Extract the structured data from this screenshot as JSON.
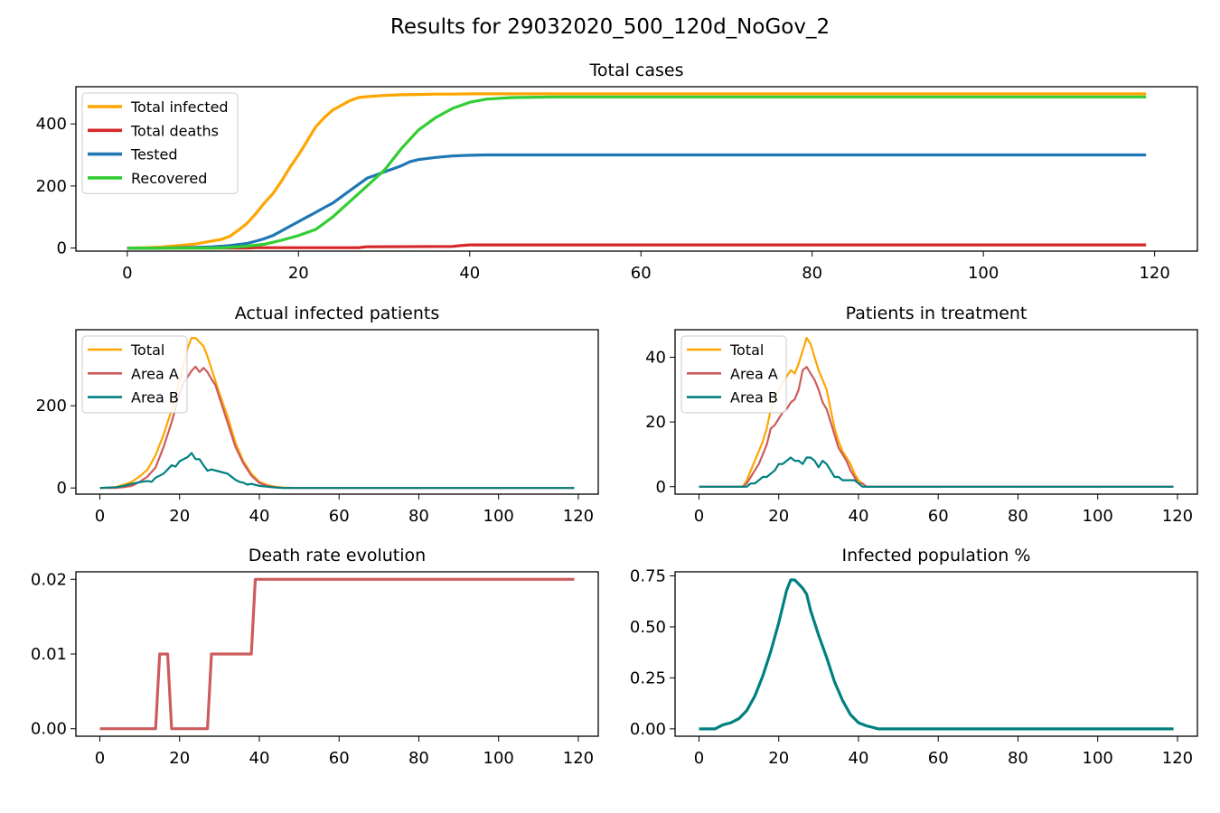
{
  "figure": {
    "title": "Results for 29032020_500_120d_NoGov_2"
  },
  "colors": {
    "orange": "#ffa500",
    "red": "#d62728",
    "blue": "#1f77b4",
    "green": "#32cd32",
    "indianred": "#cd5c5c",
    "teal": "#008080"
  },
  "chart_data": [
    {
      "id": "total-cases",
      "type": "line",
      "title": "Total cases",
      "xlabel": "",
      "ylabel": "",
      "xlim": [
        -6,
        125
      ],
      "ylim": [
        -10,
        520
      ],
      "xticks": [
        0,
        20,
        40,
        60,
        80,
        100,
        120
      ],
      "yticks": [
        0,
        200,
        400
      ],
      "ytick_labels": [
        "0",
        "200",
        "400"
      ],
      "legend": {
        "placement": "upper-left"
      },
      "series": [
        {
          "name": "Total infected",
          "color": "#ffa500",
          "x": [
            0,
            2,
            4,
            6,
            8,
            10,
            11,
            12,
            13,
            14,
            15,
            16,
            17,
            18,
            19,
            20,
            21,
            22,
            23,
            24,
            25,
            26,
            27,
            28,
            30,
            32,
            34,
            36,
            38,
            40,
            45,
            50,
            60,
            119
          ],
          "y": [
            0,
            1,
            3,
            8,
            13,
            23,
            28,
            38,
            58,
            80,
            110,
            145,
            175,
            215,
            260,
            300,
            345,
            390,
            420,
            445,
            460,
            475,
            485,
            488,
            492,
            494,
            495,
            496,
            496,
            497,
            497,
            497,
            497,
            497
          ]
        },
        {
          "name": "Total deaths",
          "color": "#d62728",
          "x": [
            0,
            14,
            15,
            17,
            18,
            27,
            28,
            38,
            39,
            40,
            119
          ],
          "y": [
            0,
            0,
            1,
            1,
            1,
            1,
            4,
            5,
            8,
            10,
            10
          ]
        },
        {
          "name": "Tested",
          "color": "#1f77b4",
          "x": [
            0,
            4,
            8,
            10,
            12,
            14,
            15,
            16,
            17,
            18,
            19,
            20,
            21,
            22,
            23,
            24,
            25,
            26,
            27,
            28,
            29,
            30,
            31,
            32,
            33,
            34,
            36,
            38,
            40,
            42,
            45,
            119
          ],
          "y": [
            0,
            0,
            2,
            4,
            8,
            15,
            22,
            30,
            40,
            55,
            70,
            85,
            100,
            115,
            130,
            145,
            165,
            185,
            205,
            225,
            235,
            245,
            255,
            265,
            278,
            285,
            292,
            297,
            299,
            300,
            300,
            300
          ]
        },
        {
          "name": "Recovered",
          "color": "#32cd32",
          "x": [
            0,
            10,
            12,
            14,
            16,
            18,
            20,
            22,
            24,
            26,
            28,
            30,
            32,
            34,
            36,
            38,
            40,
            42,
            45,
            50,
            119
          ],
          "y": [
            0,
            0,
            2,
            6,
            12,
            25,
            40,
            60,
            100,
            150,
            200,
            250,
            320,
            380,
            420,
            450,
            470,
            480,
            485,
            487,
            487
          ]
        }
      ]
    },
    {
      "id": "actual-infected",
      "type": "line",
      "title": "Actual infected patients",
      "xlabel": "",
      "ylabel": "",
      "xlim": [
        -6,
        125
      ],
      "ylim": [
        -15,
        385
      ],
      "xticks": [
        0,
        20,
        40,
        60,
        80,
        100,
        120
      ],
      "yticks": [
        0,
        200
      ],
      "ytick_labels": [
        "0",
        "200"
      ],
      "legend": {
        "placement": "upper-left"
      },
      "series": [
        {
          "name": "Total",
          "color": "#ffa500",
          "x": [
            0,
            4,
            6,
            8,
            10,
            12,
            14,
            16,
            18,
            20,
            21,
            22,
            23,
            24,
            25,
            26,
            27,
            28,
            30,
            32,
            34,
            36,
            38,
            40,
            42,
            44,
            46,
            50,
            119
          ],
          "y": [
            0,
            2,
            8,
            15,
            28,
            45,
            80,
            130,
            190,
            260,
            300,
            340,
            365,
            365,
            355,
            345,
            320,
            290,
            230,
            175,
            110,
            65,
            35,
            15,
            7,
            3,
            1,
            0,
            0
          ]
        },
        {
          "name": "Area A",
          "color": "#cd5c5c",
          "x": [
            0,
            4,
            6,
            8,
            10,
            12,
            14,
            16,
            18,
            20,
            21,
            22,
            23,
            24,
            25,
            26,
            27,
            28,
            29,
            30,
            32,
            34,
            36,
            38,
            40,
            42,
            44,
            46,
            50,
            119
          ],
          "y": [
            0,
            0,
            2,
            5,
            15,
            28,
            50,
            100,
            160,
            230,
            255,
            270,
            285,
            295,
            282,
            292,
            282,
            265,
            250,
            220,
            160,
            100,
            60,
            30,
            12,
            5,
            2,
            0,
            0,
            0
          ]
        },
        {
          "name": "Area B",
          "color": "#008080",
          "x": [
            0,
            4,
            6,
            8,
            10,
            12,
            13,
            14,
            16,
            18,
            19,
            20,
            21,
            22,
            23,
            24,
            25,
            26,
            27,
            28,
            30,
            32,
            34,
            35,
            36,
            37,
            38,
            40,
            42,
            44,
            46,
            50,
            119
          ],
          "y": [
            0,
            2,
            5,
            10,
            14,
            17,
            15,
            25,
            35,
            55,
            52,
            65,
            70,
            75,
            85,
            70,
            70,
            55,
            42,
            45,
            40,
            35,
            20,
            15,
            13,
            8,
            10,
            5,
            3,
            1,
            0,
            0,
            0
          ]
        }
      ]
    },
    {
      "id": "in-treatment",
      "type": "line",
      "title": "Patients in treatment",
      "xlabel": "",
      "ylabel": "",
      "xlim": [
        -6,
        125
      ],
      "ylim": [
        -2.3,
        48.5
      ],
      "xticks": [
        0,
        20,
        40,
        60,
        80,
        100,
        120
      ],
      "yticks": [
        0,
        20,
        40
      ],
      "ytick_labels": [
        "0",
        "20",
        "40"
      ],
      "legend": {
        "placement": "upper-left"
      },
      "series": [
        {
          "name": "Total",
          "color": "#ffa500",
          "x": [
            0,
            11,
            12,
            13,
            14,
            15,
            16,
            17,
            18,
            19,
            20,
            21,
            22,
            23,
            24,
            25,
            26,
            27,
            28,
            29,
            30,
            31,
            32,
            33,
            34,
            35,
            36,
            37,
            38,
            39,
            40,
            41,
            42,
            45,
            119
          ],
          "y": [
            0,
            0,
            2,
            5,
            8,
            11,
            14,
            18,
            24,
            27,
            30,
            32,
            34,
            36,
            35,
            38,
            42,
            46,
            44,
            40,
            36,
            33,
            30,
            24,
            18,
            14,
            11,
            9,
            7,
            4,
            2,
            1,
            0,
            0,
            0
          ]
        },
        {
          "name": "Area A",
          "color": "#cd5c5c",
          "x": [
            0,
            11,
            12,
            13,
            14,
            15,
            16,
            17,
            18,
            19,
            20,
            21,
            22,
            23,
            24,
            25,
            26,
            27,
            28,
            29,
            30,
            31,
            32,
            33,
            34,
            35,
            36,
            37,
            38,
            39,
            40,
            41,
            42,
            45,
            119
          ],
          "y": [
            0,
            0,
            1,
            3,
            5,
            7,
            10,
            13,
            18,
            19,
            21,
            23,
            24,
            26,
            27,
            30,
            36,
            37,
            35,
            33,
            30,
            26,
            24,
            20,
            16,
            12,
            10,
            8,
            5,
            3,
            1,
            1,
            0,
            0,
            0
          ]
        },
        {
          "name": "Area B",
          "color": "#008080",
          "x": [
            0,
            12,
            13,
            14,
            15,
            16,
            17,
            18,
            19,
            20,
            21,
            22,
            23,
            24,
            25,
            26,
            27,
            28,
            29,
            30,
            31,
            32,
            33,
            34,
            35,
            36,
            37,
            38,
            39,
            40,
            41,
            42,
            45,
            119
          ],
          "y": [
            0,
            0,
            1,
            1,
            2,
            3,
            3,
            4,
            5,
            7,
            7,
            8,
            9,
            8,
            8,
            7,
            9,
            9,
            8,
            6,
            8,
            7,
            5,
            3,
            3,
            2,
            2,
            2,
            2,
            1,
            0,
            0,
            0,
            0
          ]
        }
      ]
    },
    {
      "id": "death-rate",
      "type": "line",
      "title": "Death rate evolution",
      "xlabel": "",
      "ylabel": "",
      "xlim": [
        -6,
        125
      ],
      "ylim": [
        -0.001,
        0.021
      ],
      "xticks": [
        0,
        20,
        40,
        60,
        80,
        100,
        120
      ],
      "yticks": [
        0,
        0.01,
        0.02
      ],
      "ytick_labels": [
        "0.00",
        "0.01",
        "0.02"
      ],
      "series": [
        {
          "name": "",
          "color": "#cd5c5c",
          "x": [
            0,
            14,
            15,
            17,
            18,
            27,
            28,
            38,
            39,
            119
          ],
          "y": [
            0,
            0,
            0.01,
            0.01,
            0,
            0,
            0.01,
            0.01,
            0.02,
            0.02
          ]
        }
      ]
    },
    {
      "id": "infected-pct",
      "type": "line",
      "title": "Infected population %",
      "xlabel": "",
      "ylabel": "",
      "xlim": [
        -6,
        125
      ],
      "ylim": [
        -0.036,
        0.77
      ],
      "xticks": [
        0,
        20,
        40,
        60,
        80,
        100,
        120
      ],
      "yticks": [
        0,
        0.25,
        0.5,
        0.75
      ],
      "ytick_labels": [
        "0.00",
        "0.25",
        "0.50",
        "0.75"
      ],
      "series": [
        {
          "name": "",
          "color": "#008080",
          "x": [
            0,
            4,
            6,
            8,
            10,
            12,
            14,
            16,
            18,
            20,
            21,
            22,
            23,
            24,
            25,
            26,
            27,
            28,
            30,
            32,
            34,
            36,
            38,
            40,
            42,
            44,
            45,
            50,
            119
          ],
          "y": [
            0,
            0,
            0.02,
            0.03,
            0.05,
            0.09,
            0.16,
            0.26,
            0.38,
            0.52,
            0.6,
            0.68,
            0.73,
            0.73,
            0.71,
            0.69,
            0.66,
            0.58,
            0.46,
            0.35,
            0.23,
            0.14,
            0.07,
            0.03,
            0.015,
            0.005,
            0,
            0,
            0
          ]
        }
      ]
    }
  ]
}
